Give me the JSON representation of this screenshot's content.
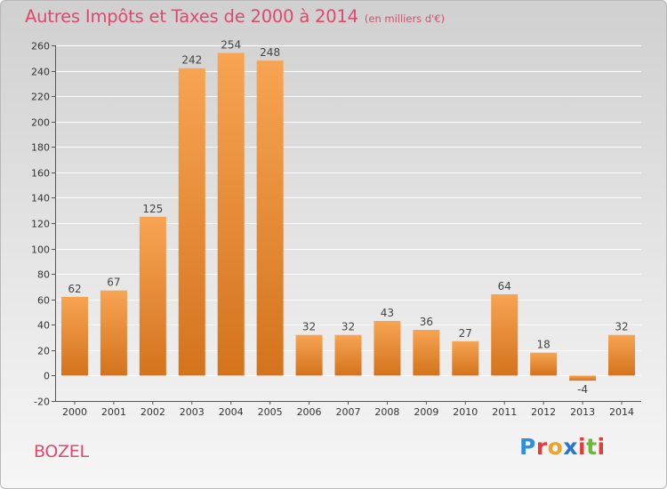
{
  "title": "Autres Impôts et Taxes de 2000 à 2014",
  "subtitle": "(en milliers d'€)",
  "place": "BOZEL",
  "logo": {
    "letters": [
      "P",
      "r",
      "o",
      "x",
      "i",
      "t",
      "i"
    ],
    "colors": [
      "#2f8fd8",
      "#e23c3c",
      "#f0a22a",
      "#2a74c9",
      "#e23c3c",
      "#6cba3a",
      "#e23c3c"
    ]
  },
  "colors": {
    "bar_light": "#f7a453",
    "bar_dark": "#d4731c",
    "grid": "#ffffff",
    "axis": "#555555"
  },
  "chart_data": {
    "type": "bar",
    "categories": [
      "2000",
      "2001",
      "2002",
      "2003",
      "2004",
      "2005",
      "2006",
      "2007",
      "2008",
      "2009",
      "2010",
      "2011",
      "2012",
      "2013",
      "2014"
    ],
    "values": [
      62,
      67,
      125,
      242,
      254,
      248,
      32,
      32,
      43,
      36,
      27,
      64,
      18,
      -4,
      32
    ],
    "data_labels": [
      "62",
      "67",
      "125",
      "242",
      "254",
      "248",
      "32",
      "32",
      "43",
      "36",
      "27",
      "64",
      "18",
      "-4",
      "32"
    ],
    "title": "Autres Impôts et Taxes de 2000 à 2014",
    "subtitle": "(en milliers d'€)",
    "xlabel": "",
    "ylabel": "",
    "ylim": [
      -20,
      260
    ],
    "yticks": [
      -20,
      0,
      20,
      40,
      60,
      80,
      100,
      120,
      140,
      160,
      180,
      200,
      220,
      240,
      260
    ],
    "grid": true,
    "legend": "none"
  }
}
